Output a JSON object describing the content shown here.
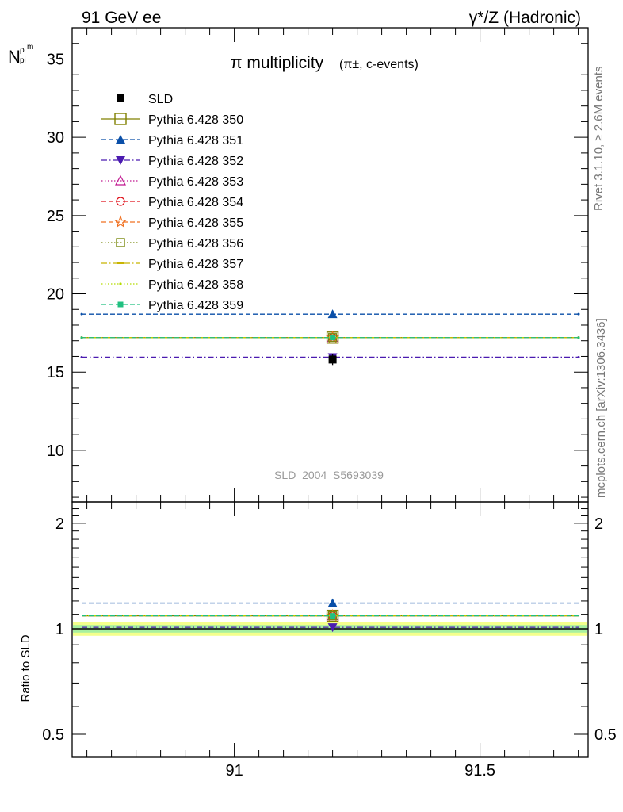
{
  "header": {
    "energy_label": "91 GeV ee",
    "process_label": "γ*/Z (Hadronic)"
  },
  "side_labels": {
    "rivet": "Rivet 3.1.10, ≥ 2.6M events",
    "mcplots": "mcplots.cern.ch [arXiv:1306.3436]"
  },
  "chart_data": {
    "type": "scatter",
    "title": "π multiplicity",
    "title_suffix": "(π±, c-events)",
    "ylabel": "N_pi^rho_m",
    "ratio_ylabel": "Ratio to SLD",
    "analysis_id": "SLD_2004_S5693039",
    "xlim": [
      90.67,
      91.72
    ],
    "ylim": [
      6.7,
      37.0
    ],
    "ratio_ylim": [
      0.43,
      2.3
    ],
    "x_ticks": [
      "91",
      "91.5"
    ],
    "y_ticks": [
      "10",
      "15",
      "20",
      "25",
      "30",
      "35"
    ],
    "ratio_y_ticks": [
      "0.5",
      "1",
      "2"
    ],
    "x": 91.2,
    "xerr": [
      90.67,
      91.72
    ],
    "data": {
      "name": "SLD",
      "y": 15.8,
      "err": 0.35,
      "color": "#000000",
      "marker": "square-filled"
    },
    "ratio_band": {
      "inner": 0.025,
      "outer": 0.045
    },
    "series": [
      {
        "name": "Pythia 6.428 350",
        "y": 17.2,
        "color": "#808000",
        "marker": "square-open",
        "dash": "solid"
      },
      {
        "name": "Pythia 6.428 351",
        "y": 18.7,
        "color": "#0a4fa8",
        "marker": "triangle-up-filled",
        "dash": "dashed"
      },
      {
        "name": "Pythia 6.428 352",
        "y": 15.95,
        "color": "#4b1bb0",
        "marker": "triangle-down-filled",
        "dash": "dashdot"
      },
      {
        "name": "Pythia 6.428 353",
        "y": 17.2,
        "color": "#c01890",
        "marker": "triangle-up-open",
        "dash": "dotted"
      },
      {
        "name": "Pythia 6.428 354",
        "y": 17.2,
        "color": "#e0101a",
        "marker": "circle-open",
        "dash": "dashed"
      },
      {
        "name": "Pythia 6.428 355",
        "y": 17.2,
        "color": "#f07020",
        "marker": "star-open",
        "dash": "dashed"
      },
      {
        "name": "Pythia 6.428 356",
        "y": 17.2,
        "color": "#7a8a10",
        "marker": "square-open-small",
        "dash": "dotted"
      },
      {
        "name": "Pythia 6.428 357",
        "y": 17.2,
        "color": "#c8b400",
        "marker": "dash-point",
        "dash": "dashdot"
      },
      {
        "name": "Pythia 6.428 358",
        "y": 17.2,
        "color": "#b4dc00",
        "marker": "dot",
        "dash": "dotted"
      },
      {
        "name": "Pythia 6.428 359",
        "y": 17.2,
        "color": "#20c080",
        "marker": "square-filled-small",
        "dash": "dashed"
      }
    ]
  }
}
